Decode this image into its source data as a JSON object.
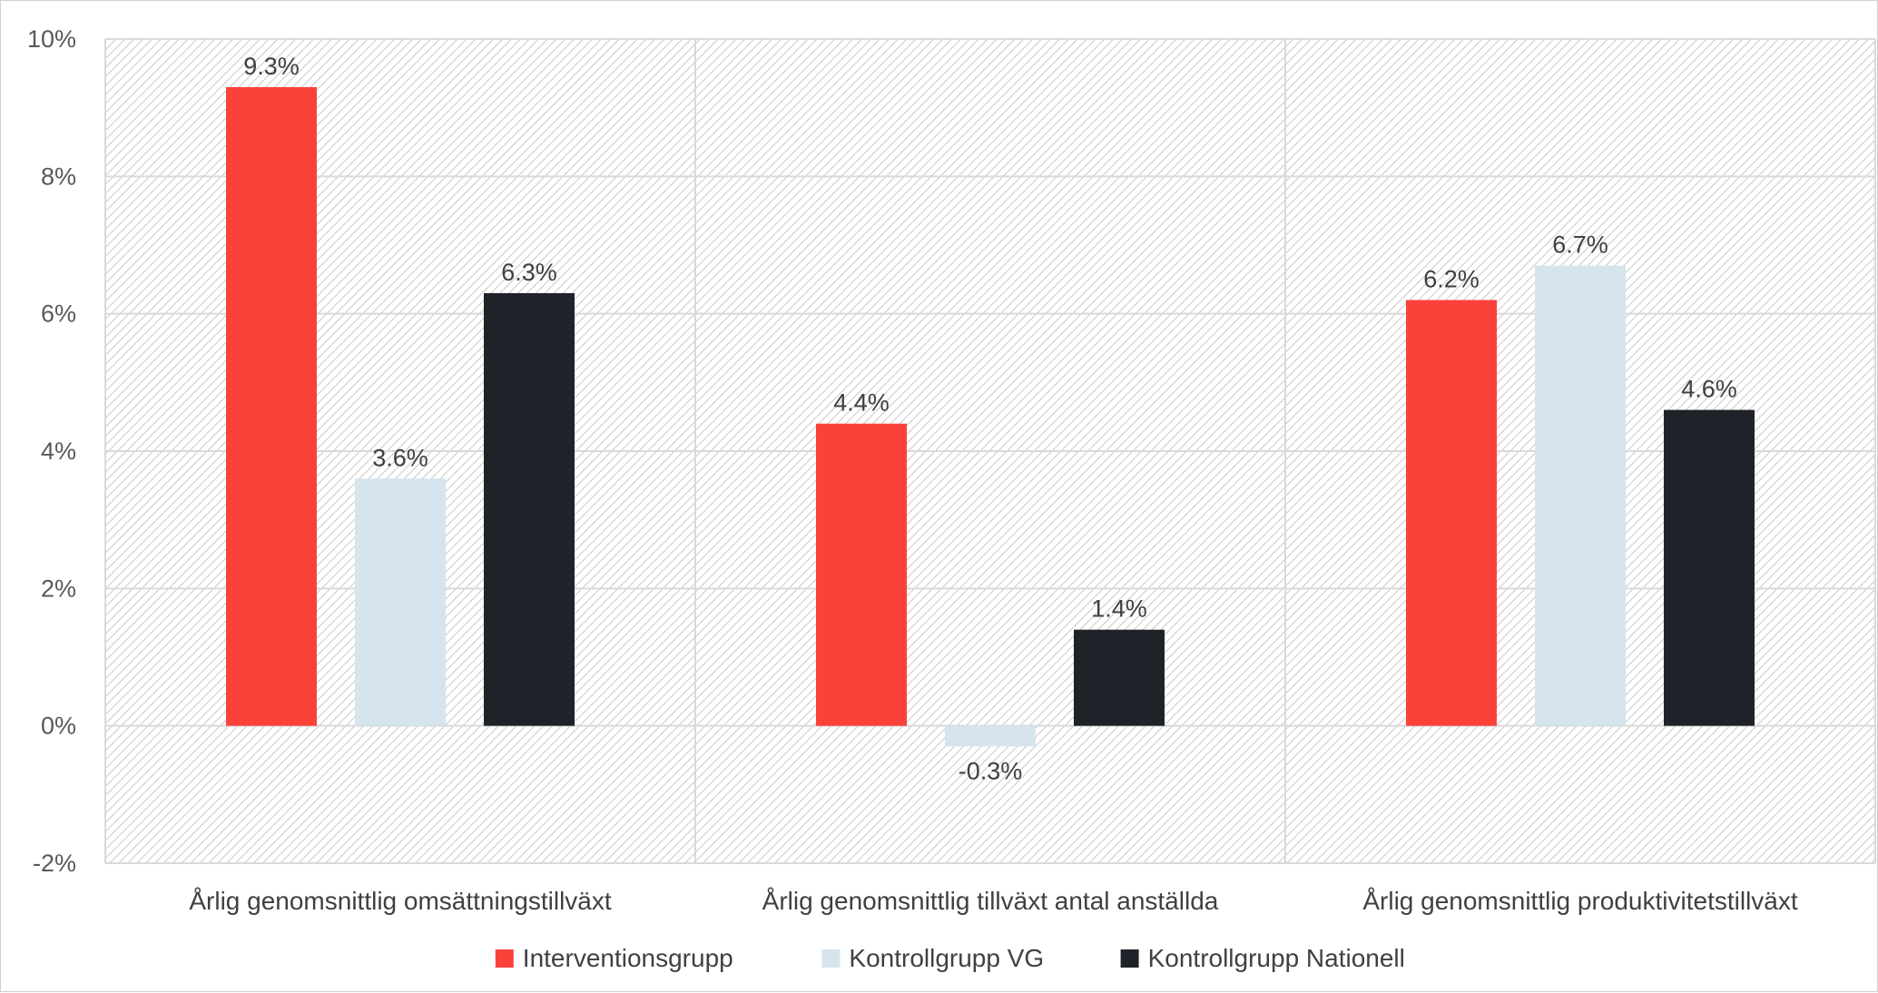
{
  "chart_data": {
    "type": "bar",
    "categories": [
      "Årlig genomsnittlig omsättningstillväxt",
      "Årlig genomsnittlig tillväxt antal anställda",
      "Årlig genomsnittlig produktivitetstillväxt"
    ],
    "series": [
      {
        "name": "Interventionsgrupp",
        "color": "#fa423a",
        "values": [
          9.3,
          4.4,
          6.2
        ],
        "labels": [
          "9.3%",
          "4.4%",
          "6.2%"
        ]
      },
      {
        "name": "Kontrollgrupp VG",
        "color": "#d6e4ee",
        "values": [
          3.6,
          -0.3,
          6.7
        ],
        "labels": [
          "3.6%",
          "-0.3%",
          "6.7%"
        ]
      },
      {
        "name": "Kontrollgrupp Nationell",
        "color": "#1f2329",
        "values": [
          6.3,
          1.4,
          4.6
        ],
        "labels": [
          "6.3%",
          "1.4%",
          "4.6%"
        ]
      }
    ],
    "ylim": [
      -2,
      10
    ],
    "yticks": [
      10,
      8,
      6,
      4,
      2,
      0,
      -2
    ],
    "ytick_labels": [
      "10%",
      "8%",
      "6%",
      "4%",
      "2%",
      "0%",
      "-2%"
    ],
    "legend_position": "bottom",
    "grid": true,
    "plot_background": "diagonal hatch"
  }
}
